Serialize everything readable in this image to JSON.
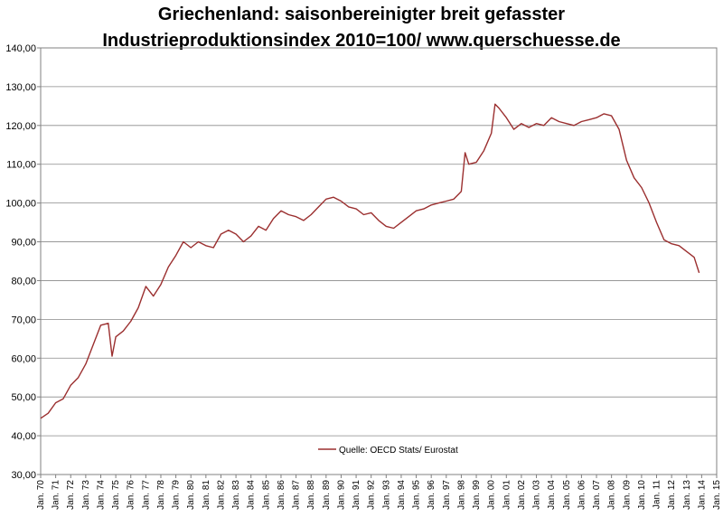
{
  "chart_data": {
    "type": "line",
    "title_lines": [
      "Griechenland: saisonbereinigter breit gefasster",
      "Industrieproduktionsindex 2010=100/ www.querschuesse.de"
    ],
    "xlabel": "",
    "ylabel": "",
    "ylim": [
      30,
      140
    ],
    "yticks": [
      "30,00",
      "40,00",
      "50,00",
      "60,00",
      "70,00",
      "80,00",
      "90,00",
      "100,00",
      "110,00",
      "120,00",
      "130,00",
      "140,00"
    ],
    "xticks": [
      "Jan. 70",
      "Jan. 71",
      "Jan. 72",
      "Jan. 73",
      "Jan. 74",
      "Jan. 75",
      "Jan. 76",
      "Jan. 77",
      "Jan. 78",
      "Jan. 79",
      "Jan. 80",
      "Jan. 81",
      "Jan. 82",
      "Jan. 83",
      "Jan. 84",
      "Jan. 85",
      "Jan. 86",
      "Jan. 87",
      "Jan. 88",
      "Jan. 89",
      "Jan. 90",
      "Jan. 91",
      "Jan. 92",
      "Jan. 93",
      "Jan. 94",
      "Jan. 95",
      "Jan. 96",
      "Jan. 97",
      "Jan. 98",
      "Jan. 99",
      "Jan. 00",
      "Jan. 01",
      "Jan. 02",
      "Jan. 03",
      "Jan. 04",
      "Jan. 05",
      "Jan. 06",
      "Jan. 07",
      "Jan. 08",
      "Jan. 09",
      "Jan. 10",
      "Jan. 11",
      "Jan. 12",
      "Jan. 13",
      "Jan. 14",
      "Jan. 15"
    ],
    "grid": "horizontal",
    "legend_position": "bottom-center",
    "series": [
      {
        "name": "Quelle: OECD Stats/ Eurostat",
        "color": "#9b2f2f",
        "points": [
          [
            "1970-01",
            44.5
          ],
          [
            "1970-07",
            45.8
          ],
          [
            "1971-01",
            48.5
          ],
          [
            "1971-07",
            49.5
          ],
          [
            "1972-01",
            53.0
          ],
          [
            "1972-07",
            55.0
          ],
          [
            "1973-01",
            58.5
          ],
          [
            "1973-07",
            63.5
          ],
          [
            "1974-01",
            68.5
          ],
          [
            "1974-07",
            69.0
          ],
          [
            "1974-10",
            60.5
          ],
          [
            "1975-01",
            65.5
          ],
          [
            "1975-07",
            67.0
          ],
          [
            "1976-01",
            69.5
          ],
          [
            "1976-07",
            73.0
          ],
          [
            "1977-01",
            78.5
          ],
          [
            "1977-07",
            76.0
          ],
          [
            "1978-01",
            79.0
          ],
          [
            "1978-07",
            83.5
          ],
          [
            "1979-01",
            86.5
          ],
          [
            "1979-07",
            90.0
          ],
          [
            "1980-01",
            88.5
          ],
          [
            "1980-07",
            90.0
          ],
          [
            "1981-01",
            89.0
          ],
          [
            "1981-07",
            88.5
          ],
          [
            "1982-01",
            92.0
          ],
          [
            "1982-07",
            93.0
          ],
          [
            "1983-01",
            92.0
          ],
          [
            "1983-07",
            90.0
          ],
          [
            "1984-01",
            91.5
          ],
          [
            "1984-07",
            94.0
          ],
          [
            "1985-01",
            93.0
          ],
          [
            "1985-07",
            96.0
          ],
          [
            "1986-01",
            98.0
          ],
          [
            "1986-07",
            97.0
          ],
          [
            "1987-01",
            96.5
          ],
          [
            "1987-07",
            95.5
          ],
          [
            "1988-01",
            97.0
          ],
          [
            "1988-07",
            99.0
          ],
          [
            "1989-01",
            101.0
          ],
          [
            "1989-07",
            101.5
          ],
          [
            "1990-01",
            100.5
          ],
          [
            "1990-07",
            99.0
          ],
          [
            "1991-01",
            98.5
          ],
          [
            "1991-07",
            97.0
          ],
          [
            "1992-01",
            97.5
          ],
          [
            "1992-07",
            95.5
          ],
          [
            "1993-01",
            94.0
          ],
          [
            "1993-07",
            93.5
          ],
          [
            "1994-01",
            95.0
          ],
          [
            "1994-07",
            96.5
          ],
          [
            "1995-01",
            98.0
          ],
          [
            "1995-07",
            98.5
          ],
          [
            "1996-01",
            99.5
          ],
          [
            "1996-07",
            100.0
          ],
          [
            "1997-01",
            100.5
          ],
          [
            "1997-07",
            101.0
          ],
          [
            "1998-01",
            103.0
          ],
          [
            "1998-04",
            113.0
          ],
          [
            "1998-07",
            110.0
          ],
          [
            "1999-01",
            110.5
          ],
          [
            "1999-07",
            113.5
          ],
          [
            "2000-01",
            118.0
          ],
          [
            "2000-04",
            125.5
          ],
          [
            "2000-07",
            124.5
          ],
          [
            "2001-01",
            122.0
          ],
          [
            "2001-07",
            119.0
          ],
          [
            "2002-01",
            120.5
          ],
          [
            "2002-07",
            119.5
          ],
          [
            "2003-01",
            120.5
          ],
          [
            "2003-07",
            120.0
          ],
          [
            "2004-01",
            122.0
          ],
          [
            "2004-07",
            121.0
          ],
          [
            "2005-01",
            120.5
          ],
          [
            "2005-07",
            120.0
          ],
          [
            "2006-01",
            121.0
          ],
          [
            "2006-07",
            121.5
          ],
          [
            "2007-01",
            122.0
          ],
          [
            "2007-07",
            123.0
          ],
          [
            "2008-01",
            122.5
          ],
          [
            "2008-07",
            119.0
          ],
          [
            "2009-01",
            111.0
          ],
          [
            "2009-07",
            106.5
          ],
          [
            "2010-01",
            104.0
          ],
          [
            "2010-07",
            100.0
          ],
          [
            "2011-01",
            95.0
          ],
          [
            "2011-07",
            90.5
          ],
          [
            "2012-01",
            89.5
          ],
          [
            "2012-07",
            89.0
          ],
          [
            "2013-01",
            87.5
          ],
          [
            "2013-07",
            86.0
          ],
          [
            "2013-11",
            82.0
          ]
        ]
      }
    ]
  }
}
